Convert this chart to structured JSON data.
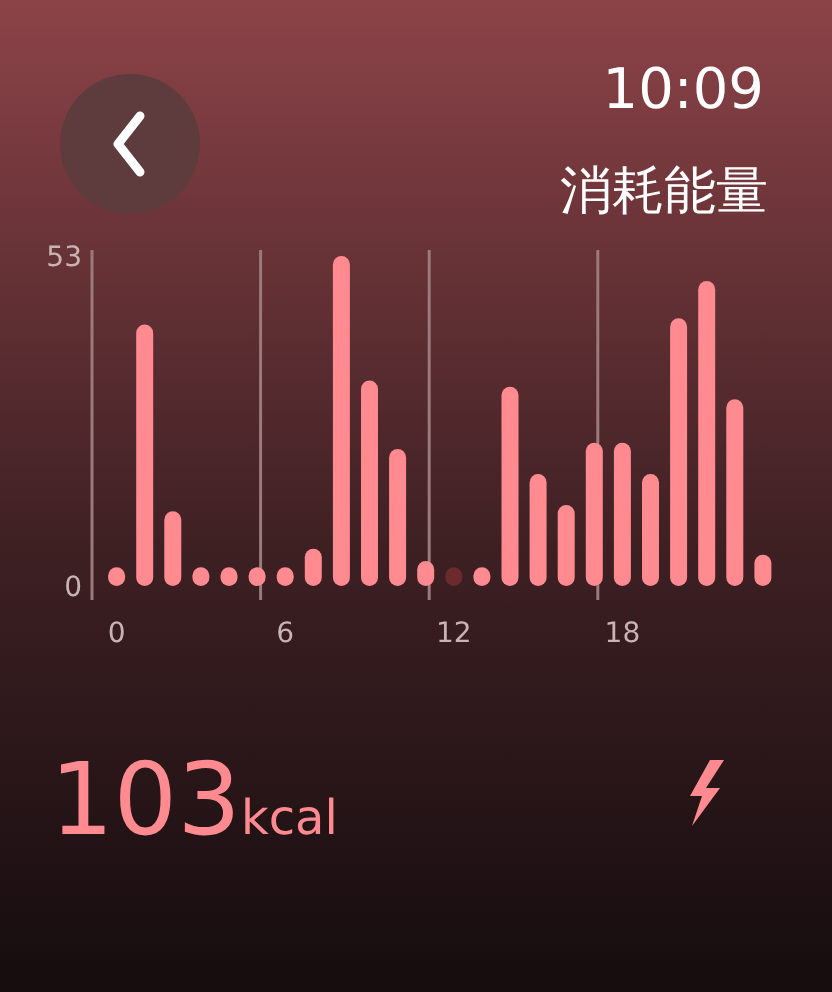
{
  "chart_data": {
    "type": "bar",
    "title": "消耗能量",
    "annotations": [
      "10:09",
      "103kcal"
    ],
    "categories": [
      "0",
      null,
      null,
      null,
      null,
      null,
      "6",
      null,
      null,
      null,
      null,
      null,
      "12",
      null,
      null,
      null,
      null,
      null,
      "18",
      null,
      null,
      null,
      null,
      null
    ],
    "values": [
      3,
      42,
      12,
      3,
      3,
      3,
      3,
      6,
      53,
      33,
      22,
      4,
      3,
      3,
      32,
      18,
      13,
      23,
      23,
      18,
      43,
      49,
      30,
      5
    ],
    "colors": [
      "#ff8a8f",
      "#ff8a8f",
      "#ff8a8f",
      "#ff8a8f",
      "#ff8a8f",
      "#ff8a8f",
      "#ff8a8f",
      "#ff8a8f",
      "#ff8a8f",
      "#ff8a8f",
      "#ff8a8f",
      "#ff8a8f",
      "#6b2a2e",
      "#ff8a8f",
      "#ff8a8f",
      "#ff8a8f",
      "#ff8a8f",
      "#ff8a8f",
      "#ff8a8f",
      "#ff8a8f",
      "#ff8a8f",
      "#ff8a8f",
      "#ff8a8f",
      "#ff8a8f"
    ],
    "ylim": [
      0,
      53
    ],
    "yticks": [
      0,
      53
    ],
    "grid": "x"
  }
}
